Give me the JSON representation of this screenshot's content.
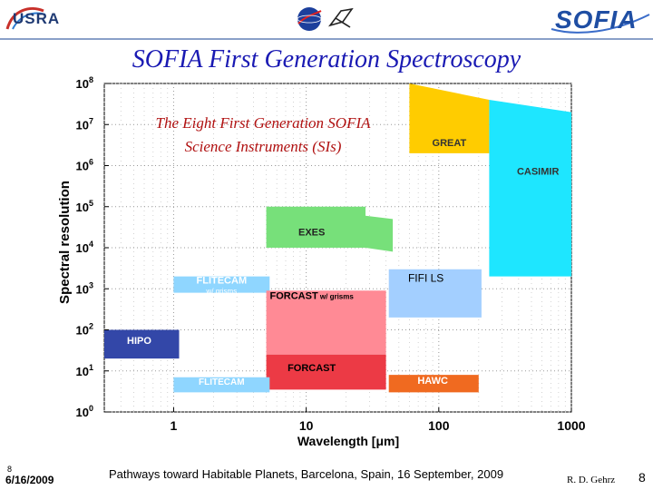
{
  "header": {
    "left_logo": "USRA",
    "right_logo": "SOFIA",
    "center_logo_icons": [
      "nasa-logo-icon",
      "dlr-logo-icon"
    ]
  },
  "slide": {
    "title": "SOFIA First Generation Spectroscopy"
  },
  "footer": {
    "slide_mini": "8",
    "date": "6/16/2009",
    "center": "Pathways toward Habitable Planets, Barcelona, Spain, 16 September, 2009",
    "author": "R. D. Gehrz",
    "page": "8"
  },
  "colors": {
    "title": "#1a1ab3",
    "annotation": "#b01010",
    "great": "#ffcc00",
    "casimir": "#1ee6ff",
    "exes": "#77e07a",
    "fifi_ls": "#a3cfff",
    "flitecam": "#8fd6ff",
    "forcast_grism": "#ff8a95",
    "forcast": "#ec3a45",
    "hipo": "#3347a8",
    "hawc": "#f06a20"
  },
  "chart_data": {
    "type": "area",
    "title": "",
    "annotation": [
      "The Eight First Generation SOFIA",
      "Science Instruments (SIs)"
    ],
    "xlabel": "Wavelength [μm]",
    "ylabel": "Spectral resolution",
    "x_scale": "log",
    "y_scale": "log",
    "xlim": [
      0.3,
      1000
    ],
    "ylim": [
      1,
      100000000
    ],
    "x_ticks": [
      "1",
      "10",
      "100",
      "1000"
    ],
    "x_tick_values": [
      1,
      10,
      100,
      1000
    ],
    "y_tick_exponents": [
      "0",
      "1",
      "2",
      "3",
      "4",
      "5",
      "6",
      "7",
      "8"
    ],
    "grid": "dotted",
    "instruments": [
      {
        "name": "GREAT",
        "color_key": "great",
        "polygon": [
          [
            60,
            100000000
          ],
          [
            240,
            40000000
          ],
          [
            240,
            2000000
          ],
          [
            60,
            2000000
          ]
        ],
        "note": ""
      },
      {
        "name": "CASIMIR",
        "color_key": "casimir",
        "polygon": [
          [
            240,
            40000000
          ],
          [
            1000,
            20000000
          ],
          [
            1000,
            2000
          ],
          [
            240,
            2000
          ]
        ],
        "note": ""
      },
      {
        "name": "EXES",
        "color_key": "exes",
        "polygon": [
          [
            5,
            100000
          ],
          [
            28,
            100000
          ],
          [
            28,
            60000
          ],
          [
            45,
            50000
          ],
          [
            45,
            8000
          ],
          [
            28,
            10000
          ],
          [
            5,
            10000
          ]
        ],
        "note": ""
      },
      {
        "name": "FIFI LS",
        "color_key": "fifi_ls",
        "polygon": [
          [
            42,
            3000
          ],
          [
            210,
            3000
          ],
          [
            210,
            200
          ],
          [
            42,
            200
          ]
        ],
        "note": ""
      },
      {
        "name": "FLITECAM",
        "color_key": "flitecam",
        "polygon": [
          [
            1,
            2000
          ],
          [
            5.3,
            2000
          ],
          [
            5.3,
            800
          ],
          [
            1,
            800
          ]
        ],
        "note": "w/ grisms"
      },
      {
        "name": "FORCAST",
        "color_key": "forcast_grism",
        "polygon": [
          [
            5,
            900
          ],
          [
            40,
            900
          ],
          [
            40,
            25
          ],
          [
            5,
            25
          ]
        ],
        "note": "w/ grisms"
      },
      {
        "name": "FORCAST",
        "color_key": "forcast",
        "polygon": [
          [
            5,
            25
          ],
          [
            40,
            25
          ],
          [
            40,
            3.5
          ],
          [
            5,
            3.5
          ]
        ],
        "note": ""
      },
      {
        "name": "HIPO",
        "color_key": "hipo",
        "polygon": [
          [
            0.3,
            100
          ],
          [
            1.1,
            100
          ],
          [
            1.1,
            20
          ],
          [
            0.3,
            20
          ]
        ],
        "note": ""
      },
      {
        "name": "FLITECAM",
        "color_key": "flitecam",
        "polygon": [
          [
            1,
            7
          ],
          [
            5.3,
            7
          ],
          [
            5.3,
            3
          ],
          [
            1,
            3
          ]
        ],
        "note": ""
      },
      {
        "name": "HAWC",
        "color_key": "hawc",
        "polygon": [
          [
            42,
            8
          ],
          [
            200,
            8
          ],
          [
            200,
            3
          ],
          [
            42,
            3
          ]
        ],
        "note": ""
      }
    ]
  }
}
